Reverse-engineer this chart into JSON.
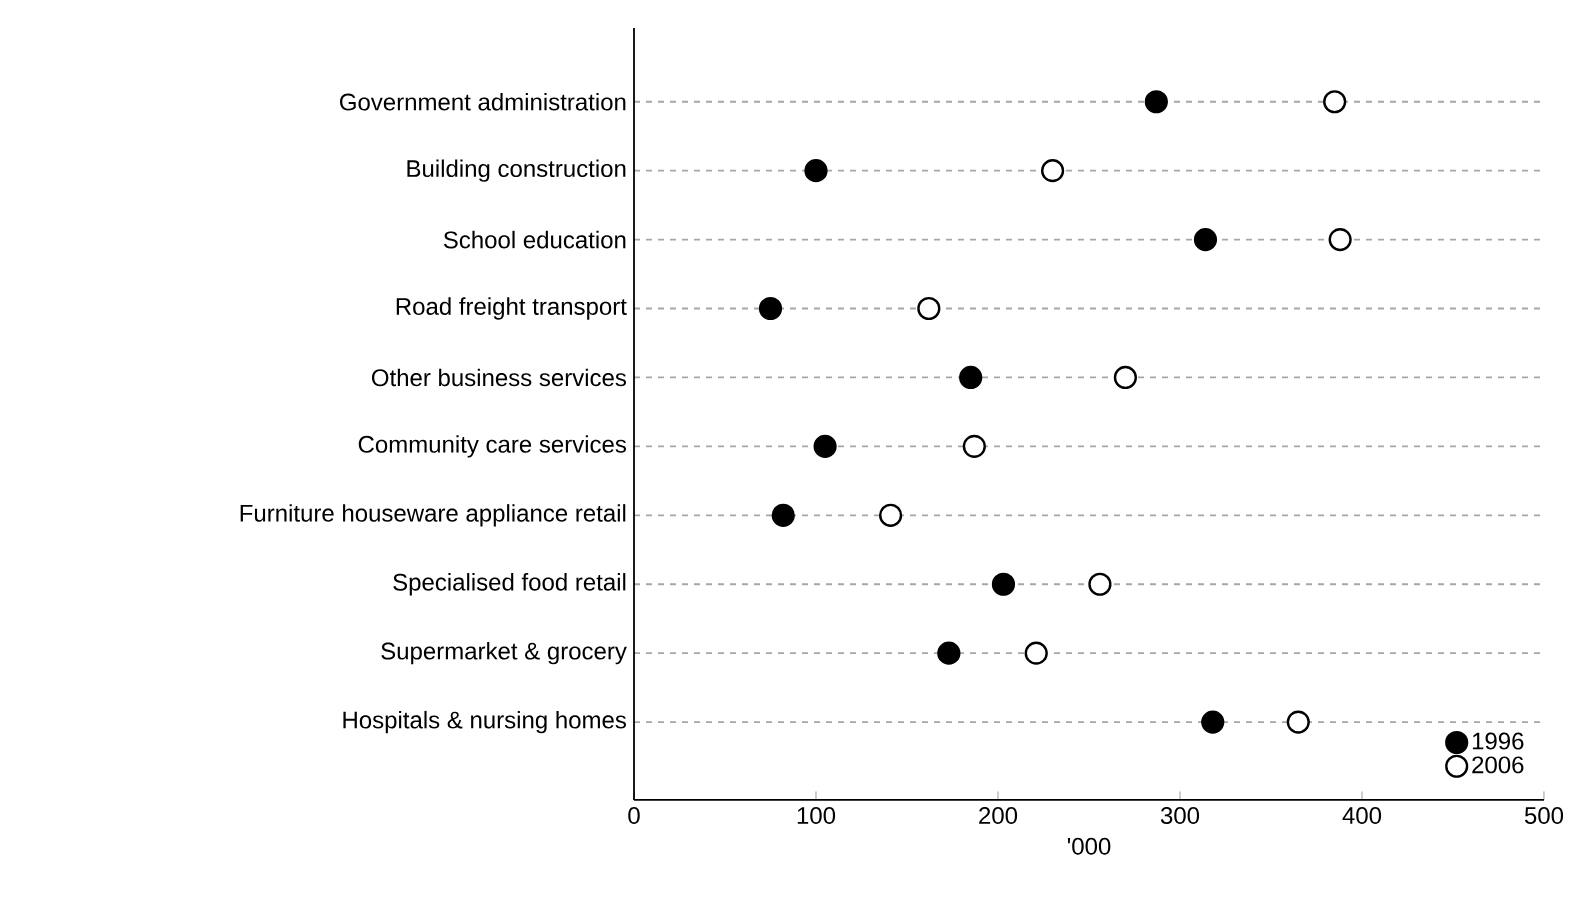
{
  "chart_data": {
    "type": "scatter",
    "orientation": "horizontal",
    "xlabel": "'000",
    "categories": [
      "Government administration",
      "Building construction",
      "School education",
      "Road freight transport",
      "Other business services",
      "Community care services",
      "Furniture houseware appliance retail",
      "Specialised food retail",
      "Supermarket & grocery",
      "Hospitals & nursing homes"
    ],
    "series": [
      {
        "name": "1996",
        "color": "#000000",
        "values": [
          287,
          100,
          314,
          75,
          185,
          105,
          82,
          203,
          173,
          318
        ]
      },
      {
        "name": "2006",
        "color": "#ffffff",
        "values": [
          385,
          230,
          388,
          162,
          270,
          187,
          141,
          256,
          221,
          365
        ]
      }
    ],
    "xlim": [
      0,
      500
    ],
    "xticks": [
      0,
      100,
      200,
      300,
      400,
      500
    ],
    "grid": "y",
    "legend": "bottom right"
  }
}
